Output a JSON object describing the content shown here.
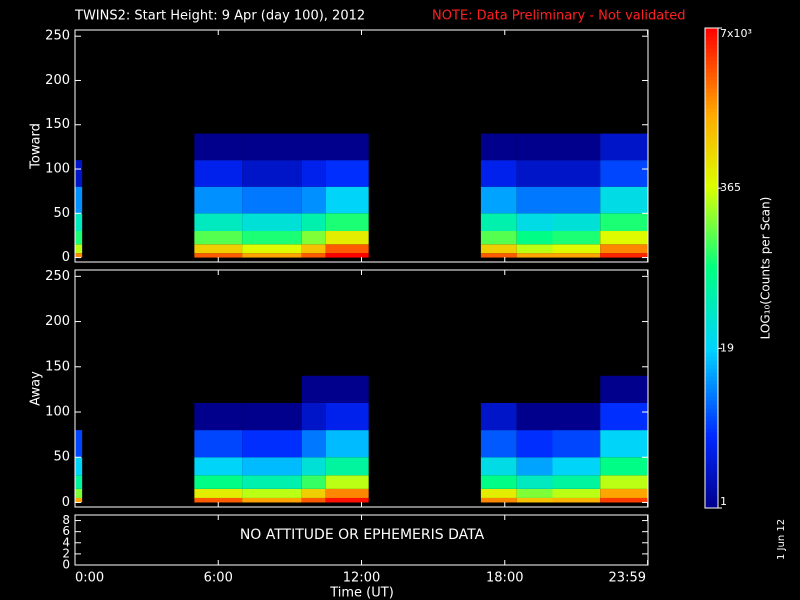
{
  "title": "TWINS2: Start Height:  9 Apr (day 100), 2012",
  "note": "NOTE: Data Preliminary - Not validated",
  "stamp": "1 Jun 12",
  "colorbar": {
    "zlim": [
      1,
      7000
    ],
    "log": true,
    "zticks": [
      1,
      19,
      365,
      {
        "value": 7000,
        "label": "7x10³"
      }
    ],
    "label": "LOG₁₀(Counts per Scan)"
  },
  "chart_data": [
    {
      "type": "heatmap",
      "ylabel": "Toward",
      "ylim": [
        -5,
        257
      ],
      "yticks": [
        0,
        50,
        100,
        150,
        200,
        250
      ],
      "x_edges": [
        0,
        0.3,
        5,
        7,
        9.5,
        10.5,
        12.3,
        17,
        18.5,
        20,
        22,
        24
      ],
      "y_edges": [
        0,
        5,
        15,
        30,
        50,
        80,
        110,
        140
      ],
      "counts": [
        [
          2000,
          300,
          100,
          40,
          10,
          2,
          null
        ],
        [
          null,
          null,
          null,
          null,
          null,
          null,
          null
        ],
        [
          3000,
          800,
          150,
          40,
          10,
          3,
          1
        ],
        [
          1500,
          400,
          100,
          30,
          8,
          2,
          1
        ],
        [
          3000,
          1000,
          200,
          50,
          10,
          3,
          1
        ],
        [
          7000,
          3000,
          500,
          100,
          20,
          4,
          1
        ],
        [
          null,
          null,
          null,
          null,
          null,
          null,
          null
        ],
        [
          3000,
          800,
          150,
          50,
          12,
          3,
          1
        ],
        [
          1500,
          300,
          80,
          25,
          8,
          2,
          1
        ],
        [
          1500,
          400,
          100,
          30,
          8,
          2,
          1
        ],
        [
          5000,
          2000,
          400,
          100,
          25,
          5,
          2
        ]
      ]
    },
    {
      "type": "heatmap",
      "ylabel": "Away",
      "ylim": [
        -5,
        257
      ],
      "yticks": [
        0,
        50,
        100,
        150,
        200,
        250
      ],
      "x_edges": [
        0,
        0.3,
        5,
        7,
        9.5,
        10.5,
        12.3,
        17,
        18.5,
        20,
        22,
        24
      ],
      "y_edges": [
        0,
        5,
        15,
        30,
        50,
        80,
        110,
        140
      ],
      "counts": [
        [
          1500,
          200,
          60,
          20,
          5,
          null,
          null
        ],
        [
          null,
          null,
          null,
          null,
          null,
          null,
          null
        ],
        [
          3000,
          500,
          80,
          20,
          5,
          1,
          null
        ],
        [
          1500,
          300,
          50,
          15,
          4,
          1,
          null
        ],
        [
          3000,
          800,
          120,
          30,
          8,
          2,
          1
        ],
        [
          6000,
          2000,
          300,
          60,
          15,
          3,
          1
        ],
        [
          null,
          null,
          null,
          null,
          null,
          null,
          null
        ],
        [
          2000,
          500,
          80,
          25,
          6,
          2,
          null
        ],
        [
          1000,
          200,
          40,
          12,
          4,
          1,
          null
        ],
        [
          1200,
          300,
          60,
          20,
          5,
          1,
          null
        ],
        [
          4000,
          1500,
          300,
          80,
          20,
          4,
          1
        ]
      ]
    },
    {
      "type": "text",
      "annotation": "NO ATTITUDE OR EPHEMERIS DATA",
      "ylim": [
        0,
        9
      ],
      "yticks": [
        0,
        2,
        4,
        6,
        8
      ],
      "xlim": [
        0,
        24
      ],
      "xlabel": "Time (UT)",
      "xticks": [
        {
          "value": 0,
          "label": "0:00"
        },
        {
          "value": 6,
          "label": "6:00"
        },
        {
          "value": 12,
          "label": "12:00"
        },
        {
          "value": 18,
          "label": "18:00"
        },
        {
          "value": 23.983,
          "label": "23:59"
        }
      ]
    }
  ]
}
